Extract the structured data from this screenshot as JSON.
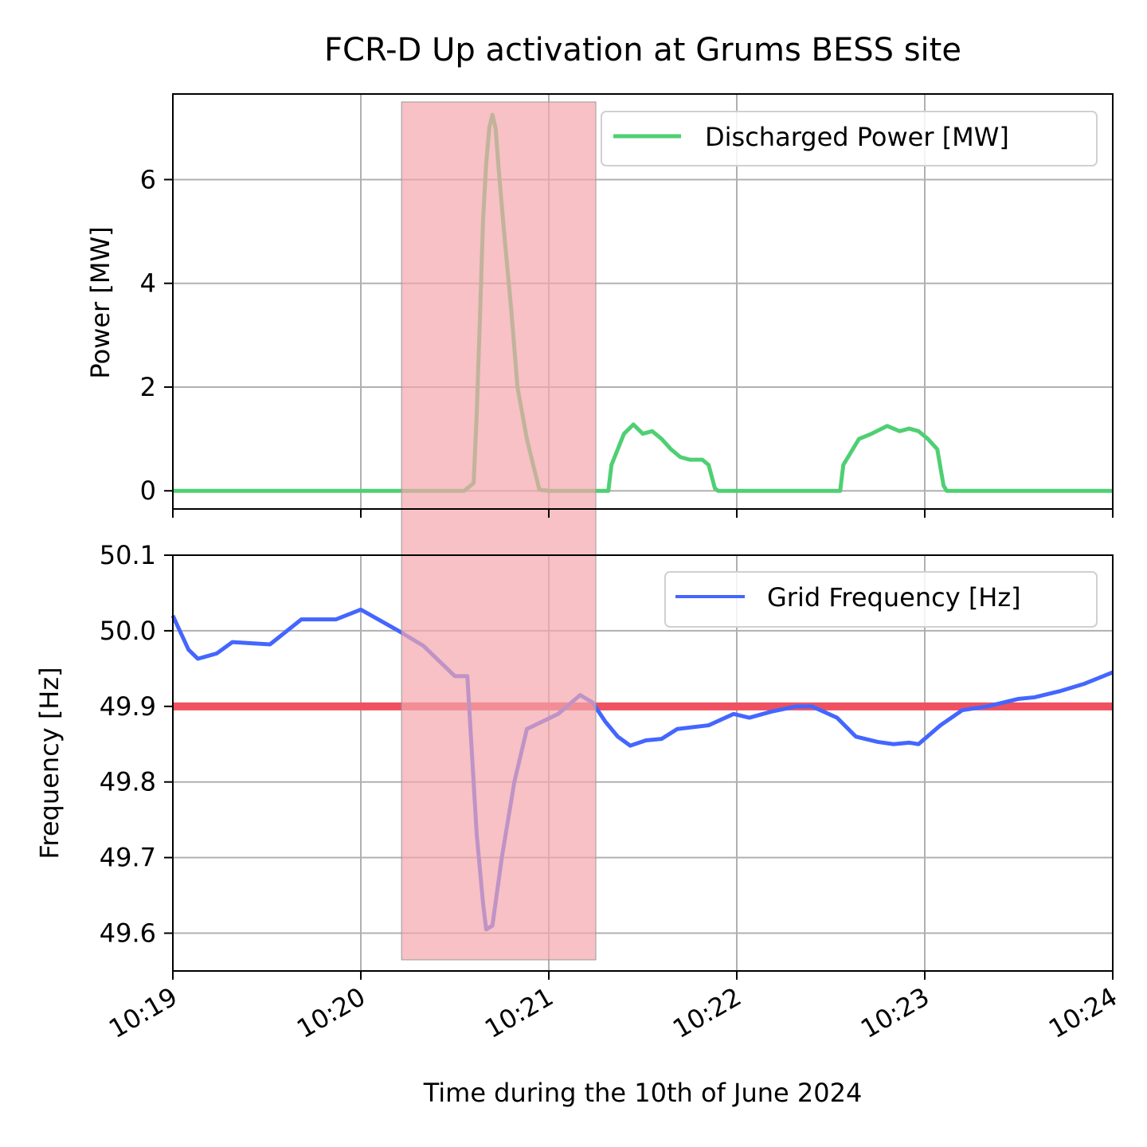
{
  "chart_data": [
    {
      "type": "line",
      "panel": "top",
      "title": "FCR-D Up activation at Grums BESS site",
      "ylabel": "Power [MW]",
      "ylim": [
        -0.35,
        7.65
      ],
      "yticks": [
        "0",
        "2",
        "4",
        "6"
      ],
      "xlim": [
        "10:19:00",
        "10:24:00"
      ],
      "grid": true,
      "legend_position": "top-right",
      "series": [
        {
          "name": "Discharged Power [MW]",
          "color": "#4fcf73",
          "x": [
            "10:19:00",
            "10:20:33",
            "10:20:35",
            "10:20:36",
            "10:20:37",
            "10:20:38",
            "10:20:39",
            "10:20:40",
            "10:20:41",
            "10:20:42",
            "10:20:43",
            "10:20:44",
            "10:20:46",
            "10:20:48",
            "10:20:50",
            "10:20:53",
            "10:20:55",
            "10:20:57",
            "10:21:00",
            "10:21:19",
            "10:21:20",
            "10:21:22",
            "10:21:24",
            "10:21:27",
            "10:21:30",
            "10:21:33",
            "10:21:36",
            "10:21:39",
            "10:21:42",
            "10:21:45",
            "10:21:49",
            "10:21:51",
            "10:21:53",
            "10:21:54",
            "10:22:33",
            "10:22:34",
            "10:22:36",
            "10:22:39",
            "10:22:43",
            "10:22:48",
            "10:22:52",
            "10:22:55",
            "10:22:58",
            "10:23:01",
            "10:23:04",
            "10:23:06",
            "10:23:07",
            "10:24:00"
          ],
          "y": [
            0,
            0,
            0.1,
            0.15,
            1.5,
            3.3,
            5.2,
            6.3,
            7.0,
            7.25,
            7.0,
            6.2,
            4.8,
            3.5,
            2.0,
            1.0,
            0.5,
            0.02,
            0,
            0,
            0.5,
            0.8,
            1.1,
            1.28,
            1.1,
            1.15,
            1.0,
            0.8,
            0.65,
            0.6,
            0.6,
            0.5,
            0.05,
            0,
            0,
            0.5,
            0.7,
            1.0,
            1.1,
            1.25,
            1.15,
            1.2,
            1.15,
            1.0,
            0.8,
            0.1,
            0,
            0
          ]
        }
      ]
    },
    {
      "type": "line",
      "panel": "bottom",
      "ylabel": "Frequency [Hz]",
      "xlabel": "Time during the 10th of June 2024",
      "ylim": [
        49.55,
        50.1
      ],
      "yticks": [
        "49.6",
        "49.7",
        "49.8",
        "49.9",
        "50.0",
        "50.1"
      ],
      "xticks": [
        "10:19",
        "10:20",
        "10:21",
        "10:22",
        "10:23",
        "10:24"
      ],
      "xlim": [
        "10:19:00",
        "10:24:00"
      ],
      "grid": true,
      "legend_position": "top-right",
      "threshold": {
        "value": 49.9,
        "color": "#f0505f"
      },
      "series": [
        {
          "name": "Grid Frequency [Hz]",
          "color": "#4466ff",
          "x": [
            "10:19:00",
            "10:19:05",
            "10:19:08",
            "10:19:14",
            "10:19:19",
            "10:19:31",
            "10:19:41",
            "10:19:52",
            "10:20:00",
            "10:20:12",
            "10:20:20",
            "10:20:30",
            "10:20:34",
            "10:20:35",
            "10:20:37",
            "10:20:39",
            "10:20:40",
            "10:20:42",
            "10:20:45",
            "10:20:49",
            "10:20:53",
            "10:20:58",
            "10:21:03",
            "10:21:10",
            "10:21:14",
            "10:21:18",
            "10:21:22",
            "10:21:26",
            "10:21:31",
            "10:21:36",
            "10:21:41",
            "10:21:51",
            "10:21:59",
            "10:22:04",
            "10:22:11",
            "10:22:19",
            "10:22:24",
            "10:22:32",
            "10:22:38",
            "10:22:45",
            "10:22:50",
            "10:22:55",
            "10:22:58",
            "10:23:05",
            "10:23:12",
            "10:23:20",
            "10:23:25",
            "10:23:30",
            "10:23:35",
            "10:23:43",
            "10:23:51",
            "10:24:00"
          ],
          "y": [
            50.02,
            49.975,
            49.963,
            49.97,
            49.985,
            49.982,
            50.015,
            50.015,
            50.028,
            50.0,
            49.98,
            49.94,
            49.94,
            49.87,
            49.73,
            49.64,
            49.605,
            49.61,
            49.7,
            49.8,
            49.87,
            49.88,
            49.89,
            49.915,
            49.905,
            49.88,
            49.86,
            49.848,
            49.855,
            49.857,
            49.87,
            49.875,
            49.89,
            49.885,
            49.893,
            49.9,
            49.9,
            49.885,
            49.86,
            49.853,
            49.85,
            49.852,
            49.85,
            49.875,
            49.895,
            49.9,
            49.905,
            49.91,
            49.912,
            49.92,
            49.93,
            49.945
          ]
        }
      ]
    }
  ],
  "highlight": {
    "start": "10:20:13",
    "end": "10:21:15",
    "color": "#f4a6ad"
  }
}
